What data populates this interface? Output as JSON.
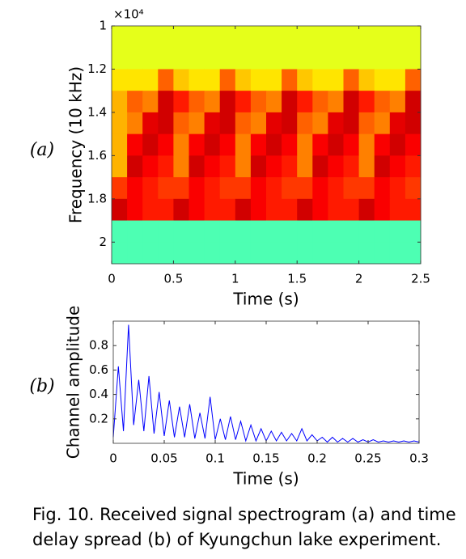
{
  "chart_data": [
    {
      "type": "heatmap",
      "panel_label": "(a)",
      "ylabel": "Frequency (10 kHz)",
      "xlabel": "Time (s)",
      "y_multiplier": "×10⁴",
      "colormap": "jet",
      "y_reversed": true,
      "xlim": [
        0,
        2.5
      ],
      "xticks": [
        0,
        0.5,
        1,
        1.5,
        2,
        2.5
      ],
      "ylim": [
        1,
        2.1
      ],
      "yticks": [
        1,
        1.2,
        1.4,
        1.6,
        1.8,
        2
      ],
      "xbins": [
        0,
        0.125,
        0.25,
        0.375,
        0.5,
        0.625,
        0.75,
        0.875,
        1,
        1.125,
        1.25,
        1.375,
        1.5,
        1.625,
        1.75,
        1.875,
        2,
        2.125,
        2.25,
        2.375,
        2.5
      ],
      "ybins": [
        1,
        1.1,
        1.2,
        1.3,
        1.4,
        1.5,
        1.6,
        1.7,
        1.8,
        1.9,
        2,
        2.1
      ],
      "z": [
        [
          0.6,
          0.6,
          0.6,
          0.6,
          0.6,
          0.6,
          0.6,
          0.6,
          0.6,
          0.6,
          0.6,
          0.6,
          0.6,
          0.6,
          0.6,
          0.6,
          0.6,
          0.6,
          0.6,
          0.6
        ],
        [
          0.6,
          0.6,
          0.6,
          0.6,
          0.6,
          0.6,
          0.6,
          0.6,
          0.6,
          0.6,
          0.6,
          0.6,
          0.6,
          0.6,
          0.6,
          0.6,
          0.6,
          0.6,
          0.6,
          0.6
        ],
        [
          0.65,
          0.65,
          0.65,
          0.78,
          0.68,
          0.65,
          0.65,
          0.78,
          0.68,
          0.65,
          0.65,
          0.78,
          0.68,
          0.65,
          0.65,
          0.78,
          0.68,
          0.65,
          0.65,
          0.78
        ],
        [
          0.7,
          0.78,
          0.75,
          0.92,
          0.85,
          0.78,
          0.75,
          0.92,
          0.85,
          0.78,
          0.75,
          0.92,
          0.85,
          0.78,
          0.75,
          0.92,
          0.85,
          0.78,
          0.75,
          0.92
        ],
        [
          0.7,
          0.75,
          0.9,
          0.92,
          0.78,
          0.75,
          0.9,
          0.92,
          0.78,
          0.75,
          0.9,
          0.92,
          0.78,
          0.75,
          0.9,
          0.92,
          0.78,
          0.75,
          0.9,
          0.92
        ],
        [
          0.7,
          0.88,
          0.92,
          0.88,
          0.75,
          0.88,
          0.92,
          0.88,
          0.75,
          0.88,
          0.92,
          0.88,
          0.75,
          0.88,
          0.92,
          0.88,
          0.75,
          0.88,
          0.92,
          0.88
        ],
        [
          0.7,
          0.92,
          0.88,
          0.85,
          0.75,
          0.92,
          0.88,
          0.85,
          0.75,
          0.92,
          0.88,
          0.85,
          0.75,
          0.92,
          0.88,
          0.85,
          0.75,
          0.92,
          0.88,
          0.85
        ],
        [
          0.82,
          0.88,
          0.85,
          0.82,
          0.82,
          0.88,
          0.85,
          0.82,
          0.82,
          0.88,
          0.85,
          0.82,
          0.82,
          0.88,
          0.85,
          0.82,
          0.82,
          0.88,
          0.85,
          0.82
        ],
        [
          0.92,
          0.88,
          0.85,
          0.85,
          0.92,
          0.88,
          0.85,
          0.85,
          0.92,
          0.88,
          0.85,
          0.85,
          0.92,
          0.88,
          0.85,
          0.85,
          0.92,
          0.88,
          0.85,
          0.85
        ],
        [
          0.45,
          0.45,
          0.45,
          0.45,
          0.45,
          0.45,
          0.45,
          0.45,
          0.45,
          0.45,
          0.45,
          0.45,
          0.45,
          0.45,
          0.45,
          0.45,
          0.45,
          0.45,
          0.45,
          0.45
        ],
        [
          0.45,
          0.45,
          0.45,
          0.45,
          0.45,
          0.45,
          0.45,
          0.45,
          0.45,
          0.45,
          0.45,
          0.45,
          0.45,
          0.45,
          0.45,
          0.45,
          0.45,
          0.45,
          0.45,
          0.45
        ]
      ]
    },
    {
      "type": "line",
      "panel_label": "(b)",
      "ylabel": "Channel amplitude",
      "xlabel": "Time (s)",
      "color": "#0000ff",
      "xlim": [
        0,
        0.3
      ],
      "xticks": [
        0,
        0.05,
        0.1,
        0.15,
        0.2,
        0.25,
        0.3
      ],
      "ylim": [
        0,
        1
      ],
      "yticks": [
        0.2,
        0.4,
        0.6,
        0.8
      ],
      "x": [
        0,
        0.005,
        0.01,
        0.015,
        0.02,
        0.025,
        0.03,
        0.035,
        0.04,
        0.045,
        0.05,
        0.055,
        0.06,
        0.065,
        0.07,
        0.075,
        0.08,
        0.085,
        0.09,
        0.095,
        0.1,
        0.105,
        0.11,
        0.115,
        0.12,
        0.125,
        0.13,
        0.135,
        0.14,
        0.145,
        0.15,
        0.155,
        0.16,
        0.165,
        0.17,
        0.175,
        0.18,
        0.185,
        0.19,
        0.195,
        0.2,
        0.205,
        0.21,
        0.215,
        0.22,
        0.225,
        0.23,
        0.235,
        0.24,
        0.245,
        0.25,
        0.255,
        0.26,
        0.265,
        0.27,
        0.275,
        0.28,
        0.285,
        0.29,
        0.295,
        0.3
      ],
      "values": [
        0.05,
        0.63,
        0.1,
        0.97,
        0.15,
        0.52,
        0.1,
        0.55,
        0.08,
        0.42,
        0.06,
        0.35,
        0.05,
        0.3,
        0.05,
        0.32,
        0.04,
        0.25,
        0.04,
        0.38,
        0.03,
        0.2,
        0.03,
        0.22,
        0.03,
        0.18,
        0.02,
        0.15,
        0.02,
        0.12,
        0.02,
        0.1,
        0.02,
        0.09,
        0.02,
        0.08,
        0.02,
        0.12,
        0.02,
        0.07,
        0.02,
        0.05,
        0.01,
        0.05,
        0.01,
        0.04,
        0.01,
        0.04,
        0.01,
        0.03,
        0.01,
        0.03,
        0.01,
        0.02,
        0.01,
        0.02,
        0.01,
        0.02,
        0.01,
        0.02,
        0.01
      ]
    }
  ],
  "caption": [
    "Fig. 10. Received signal spectrogram (a) and time",
    "delay spread (b) of Kyungchun lake experiment."
  ]
}
